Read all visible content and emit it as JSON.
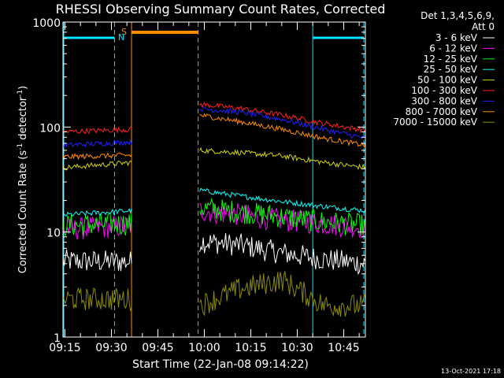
{
  "title": "RHESSI Observing Summary Count Rates, Corrected",
  "footer_date": "13-Oct-2021 17:18",
  "chart_data": {
    "type": "line",
    "title": "RHESSI Observing Summary Count Rates, Corrected",
    "xlabel": "Start Time (22-Jan-08 09:14:22)",
    "ylabel": "Corrected Count Rate (s⁻¹ detector⁻¹)",
    "ylabel_parts": {
      "main": "Corrected Count Rate (s",
      "sup1": "-1",
      "mid": " detector",
      "sup2": "-1",
      "end": ")"
    },
    "y_scale": "log",
    "ylim": [
      1,
      1000
    ],
    "xlim": [
      "09:14:22",
      "10:52:00"
    ],
    "x_tick_labels": [
      "09:15",
      "09:30",
      "09:45",
      "10:00",
      "10:15",
      "10:30",
      "10:45"
    ],
    "y_tick_labels": [
      "1",
      "10",
      "100",
      "1000"
    ],
    "legend_header": [
      "Det 1,3,4,5,6,9,",
      "Att 0"
    ],
    "legend_position": "right",
    "markers": {
      "S": {
        "label": "S",
        "color": "#ff8c00"
      },
      "N": {
        "label": "N",
        "color": "#00e5ff"
      }
    },
    "segments": [
      {
        "from": "09:14:22",
        "to": "09:36:30"
      },
      {
        "from": "09:58:30",
        "to": "10:52:00"
      }
    ],
    "series": [
      {
        "name": "3 - 6 keV",
        "color": "#ffffff",
        "values_before_gap": [
          5.3,
          5.2
        ],
        "values_after_gap": [
          8.2,
          7.5,
          6.3,
          5.5,
          5.0
        ]
      },
      {
        "name": "6 - 12 keV",
        "color": "#ff00ff",
        "values_before_gap": [
          10.5,
          11.5
        ],
        "values_after_gap": [
          16.0,
          14.5,
          13.0,
          12.0,
          11.0
        ]
      },
      {
        "name": "12 - 25 keV",
        "color": "#00ff00",
        "values_before_gap": [
          11.5,
          12.0
        ],
        "values_after_gap": [
          17.0,
          15.5,
          14.0,
          12.5,
          11.5
        ]
      },
      {
        "name": "25 - 50 keV",
        "color": "#00ffff",
        "values_before_gap": [
          14.5,
          16.0
        ],
        "values_after_gap": [
          25.0,
          22.0,
          19.5,
          17.5,
          16.0
        ]
      },
      {
        "name": "50 - 100 keV",
        "color": "#d4d400",
        "values_before_gap": [
          41.0,
          46.0
        ],
        "values_after_gap": [
          60.0,
          57.0,
          53.0,
          46.0,
          41.0
        ]
      },
      {
        "name": "100 - 300 keV",
        "color": "#ff2020",
        "values_before_gap": [
          90.0,
          95.0
        ],
        "values_after_gap": [
          165.0,
          150.0,
          130.0,
          108.0,
          93.0
        ]
      },
      {
        "name": "300 - 800 keV",
        "color": "#2020ff",
        "values_before_gap": [
          67.0,
          72.0
        ],
        "values_after_gap": [
          150.0,
          138.0,
          118.0,
          95.0,
          78.0
        ]
      },
      {
        "name": "800 - 7000 keV",
        "color": "#ff8c00",
        "values_before_gap": [
          52.0,
          54.0
        ],
        "values_after_gap": [
          130.0,
          112.0,
          95.0,
          78.0,
          67.0
        ]
      },
      {
        "name": "7000 - 15000 keV",
        "color": "#8c8c00",
        "values_before_gap": [
          2.3,
          2.3
        ],
        "values_after_gap": [
          2.0,
          2.9,
          3.5,
          2.0,
          2.0
        ]
      }
    ]
  }
}
